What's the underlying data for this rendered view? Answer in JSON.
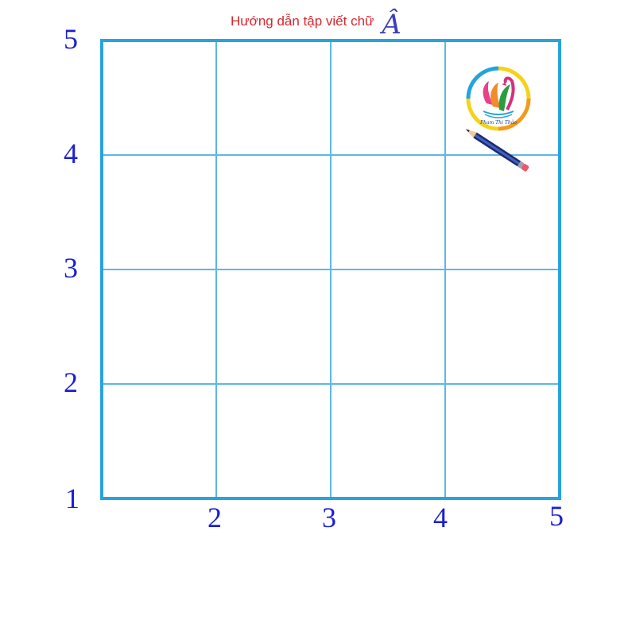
{
  "header": {
    "title": "Hướng dẫn tập viết chữ",
    "letter": "Â"
  },
  "axes": {
    "y_labels": [
      "5",
      "4",
      "3",
      "2",
      "1"
    ],
    "x_labels": [
      "2",
      "3",
      "4",
      "5"
    ]
  },
  "grid": {
    "columns": 4,
    "rows": 4,
    "border_color": "#29a3de",
    "line_color": "#5cb8e6"
  },
  "logo": {
    "caption": "Phạm Thị Thảo"
  },
  "colors": {
    "title": "#d8262d",
    "letter": "#3a3fb8",
    "axis_numbers": "#1c1fd1"
  }
}
